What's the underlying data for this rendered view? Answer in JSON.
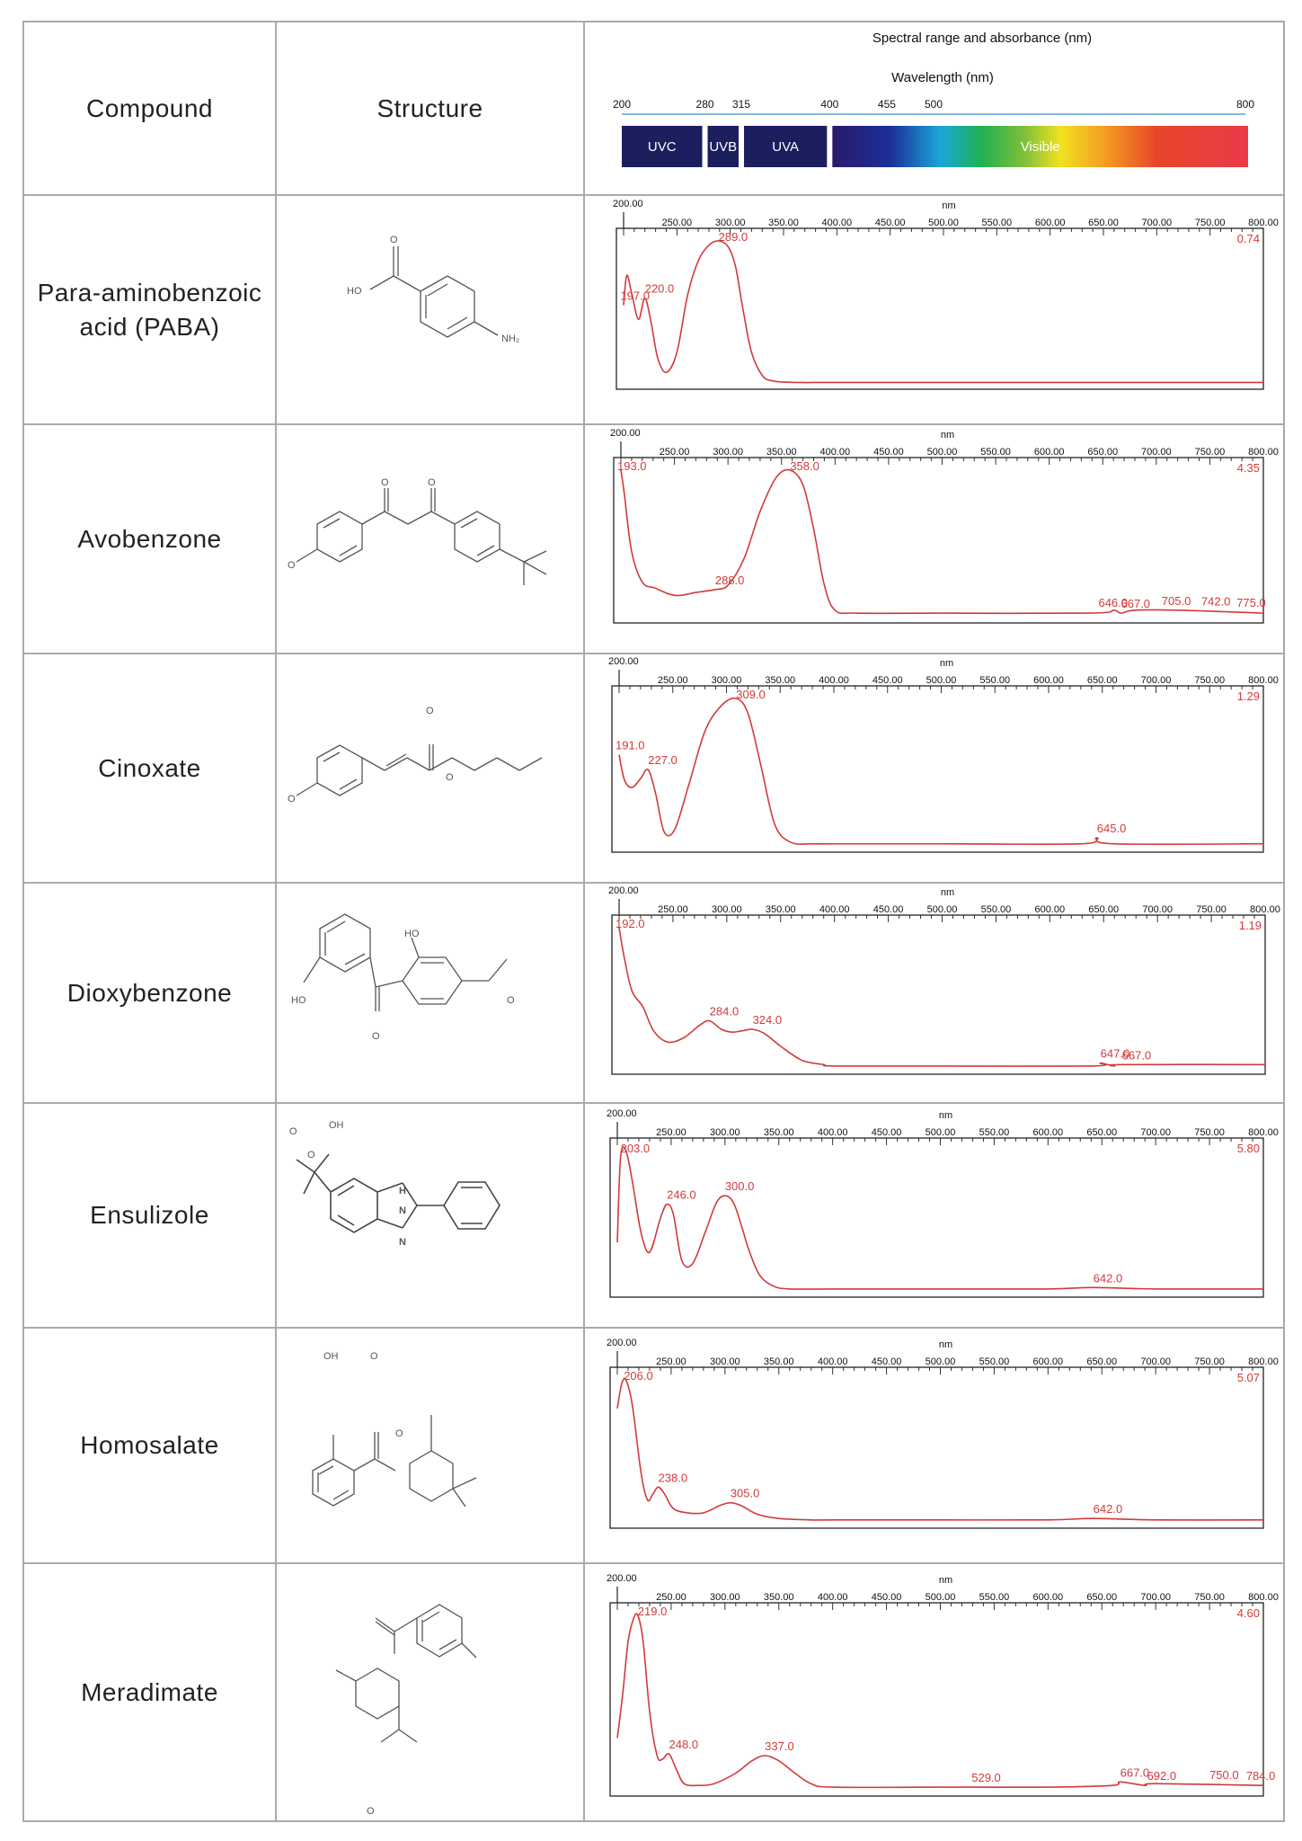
{
  "header": {
    "compound": "Compound",
    "structure": "Structure",
    "spectral_title": "Spectral range and absorbance (nm)",
    "wavelength_label": "Wavelength (nm)",
    "scale_ticks": [
      "200",
      "280",
      "315",
      "400",
      "455",
      "500",
      "800"
    ],
    "bands": [
      {
        "label": "UVC",
        "from": 200,
        "to": 280,
        "color": "#1c1f5e"
      },
      {
        "label": "UVB",
        "from": 280,
        "to": 315,
        "color": "#1c1f5e"
      },
      {
        "label": "UVA",
        "from": 315,
        "to": 400,
        "color": "#1c1f5e"
      },
      {
        "label": "Visible",
        "from": 400,
        "to": 800,
        "color": "spectrum"
      }
    ]
  },
  "axis": {
    "unit": "nm",
    "start_label": "200.00",
    "tick_labels": [
      "250.00",
      "300.00",
      "350.00",
      "400.00",
      "450.00",
      "500.00",
      "550.00",
      "600.00",
      "650.00",
      "700.00",
      "750.00",
      "800.00"
    ],
    "xlim": [
      200,
      800
    ]
  },
  "chart_data": [
    {
      "type": "line",
      "compound": "Para-aminobenzoic acid (PABA)",
      "max_label": "0.74",
      "peaks": [
        {
          "x": 197,
          "label": "197.0"
        },
        {
          "x": 220,
          "label": "220.0"
        },
        {
          "x": 289,
          "label": "289.0"
        }
      ],
      "x": [
        200,
        203,
        208,
        214,
        220,
        226,
        232,
        240,
        250,
        260,
        270,
        280,
        289,
        298,
        305,
        312,
        320,
        330,
        340,
        360,
        400,
        500,
        600,
        700,
        800
      ],
      "y": [
        0.55,
        0.76,
        0.62,
        0.45,
        0.6,
        0.42,
        0.18,
        0.08,
        0.22,
        0.62,
        0.86,
        0.97,
        1.0,
        0.96,
        0.82,
        0.52,
        0.22,
        0.06,
        0.02,
        0.01,
        0.01,
        0.01,
        0.01,
        0.01,
        0.01
      ]
    },
    {
      "type": "line",
      "compound": "Avobenzone",
      "max_label": "4.35",
      "peaks": [
        {
          "x": 193,
          "label": "193.0"
        },
        {
          "x": 288,
          "label": "288.0"
        },
        {
          "x": 358,
          "label": "358.0"
        },
        {
          "x": 646,
          "label": "646.0"
        },
        {
          "x": 667,
          "label": "667.0"
        },
        {
          "x": 705,
          "label": "705.0"
        },
        {
          "x": 742,
          "label": "742.0"
        },
        {
          "x": 775,
          "label": "775.0"
        }
      ],
      "x": [
        200,
        203,
        210,
        220,
        232,
        245,
        255,
        270,
        288,
        300,
        315,
        330,
        345,
        358,
        370,
        380,
        390,
        400,
        420,
        500,
        640,
        660,
        667,
        680,
        720,
        800
      ],
      "y": [
        1.0,
        0.85,
        0.45,
        0.24,
        0.2,
        0.16,
        0.15,
        0.17,
        0.19,
        0.22,
        0.4,
        0.72,
        0.95,
        1.0,
        0.9,
        0.6,
        0.22,
        0.05,
        0.03,
        0.03,
        0.03,
        0.05,
        0.03,
        0.05,
        0.05,
        0.03
      ]
    },
    {
      "type": "line",
      "compound": "Cinoxate",
      "max_label": "1.29",
      "peaks": [
        {
          "x": 191,
          "label": "191.0"
        },
        {
          "x": 227,
          "label": "227.0"
        },
        {
          "x": 309,
          "label": "309.0"
        },
        {
          "x": 645,
          "label": "645.0"
        }
      ],
      "x": [
        200,
        205,
        212,
        220,
        227,
        234,
        242,
        252,
        265,
        280,
        295,
        309,
        320,
        332,
        345,
        360,
        380,
        400,
        500,
        630,
        645,
        660,
        800
      ],
      "y": [
        0.62,
        0.45,
        0.4,
        0.46,
        0.52,
        0.36,
        0.1,
        0.12,
        0.42,
        0.78,
        0.95,
        1.0,
        0.9,
        0.55,
        0.15,
        0.03,
        0.02,
        0.02,
        0.02,
        0.02,
        0.06,
        0.02,
        0.02
      ]
    },
    {
      "type": "line",
      "compound": "Dioxybenzone",
      "max_label": "1.19",
      "peaks": [
        {
          "x": 192,
          "label": "192.0"
        },
        {
          "x": 284,
          "label": "284.0"
        },
        {
          "x": 324,
          "label": "324.0"
        },
        {
          "x": 647,
          "label": "647.0"
        },
        {
          "x": 667,
          "label": "667.0"
        }
      ],
      "x": [
        200,
        205,
        212,
        222,
        232,
        245,
        260,
        275,
        284,
        295,
        305,
        315,
        324,
        335,
        350,
        370,
        390,
        400,
        500,
        640,
        647,
        660,
        667,
        800
      ],
      "y": [
        1.0,
        0.78,
        0.55,
        0.44,
        0.27,
        0.19,
        0.22,
        0.31,
        0.34,
        0.28,
        0.26,
        0.27,
        0.28,
        0.25,
        0.16,
        0.06,
        0.03,
        0.02,
        0.02,
        0.02,
        0.04,
        0.02,
        0.03,
        0.03
      ]
    },
    {
      "type": "line",
      "compound": "Ensulizole",
      "max_label": "5.80",
      "peaks": [
        {
          "x": 203,
          "label": "203.0"
        },
        {
          "x": 246,
          "label": "246.0"
        },
        {
          "x": 300,
          "label": "300.0"
        },
        {
          "x": 642,
          "label": "642.0"
        }
      ],
      "x": [
        200,
        203,
        208,
        214,
        222,
        230,
        240,
        246,
        252,
        260,
        270,
        282,
        292,
        300,
        308,
        316,
        322,
        332,
        345,
        360,
        400,
        500,
        600,
        642,
        700,
        800
      ],
      "y": [
        0.35,
        0.95,
        1.0,
        0.78,
        0.42,
        0.28,
        0.52,
        0.62,
        0.55,
        0.22,
        0.2,
        0.43,
        0.63,
        0.68,
        0.63,
        0.45,
        0.3,
        0.12,
        0.04,
        0.02,
        0.02,
        0.02,
        0.02,
        0.03,
        0.02,
        0.02
      ]
    },
    {
      "type": "line",
      "compound": "Homosalate",
      "max_label": "5.07",
      "peaks": [
        {
          "x": 206,
          "label": "206.0"
        },
        {
          "x": 238,
          "label": "238.0"
        },
        {
          "x": 305,
          "label": "305.0"
        },
        {
          "x": 642,
          "label": "642.0"
        }
      ],
      "x": [
        200,
        204,
        208,
        214,
        222,
        228,
        233,
        238,
        244,
        252,
        265,
        280,
        295,
        305,
        315,
        330,
        350,
        380,
        400,
        500,
        600,
        642,
        700,
        800
      ],
      "y": [
        0.8,
        0.97,
        1.0,
        0.82,
        0.35,
        0.16,
        0.2,
        0.25,
        0.2,
        0.1,
        0.07,
        0.07,
        0.12,
        0.14,
        0.12,
        0.06,
        0.03,
        0.02,
        0.02,
        0.02,
        0.02,
        0.03,
        0.02,
        0.02
      ]
    },
    {
      "type": "line",
      "compound": "Meradimate",
      "max_label": "4.60",
      "peaks": [
        {
          "x": 219,
          "label": "219.0"
        },
        {
          "x": 248,
          "label": "248.0"
        },
        {
          "x": 337,
          "label": "337.0"
        },
        {
          "x": 529,
          "label": "529.0"
        },
        {
          "x": 667,
          "label": "667.0"
        },
        {
          "x": 692,
          "label": "692.0"
        },
        {
          "x": 750,
          "label": "750.0"
        },
        {
          "x": 784,
          "label": "784.0"
        }
      ],
      "x": [
        200,
        205,
        210,
        215,
        219,
        224,
        230,
        237,
        242,
        248,
        255,
        262,
        275,
        290,
        310,
        325,
        337,
        350,
        365,
        380,
        400,
        500,
        529,
        600,
        660,
        667,
        690,
        700,
        800
      ],
      "y": [
        0.3,
        0.55,
        0.85,
        0.98,
        1.0,
        0.85,
        0.45,
        0.2,
        0.18,
        0.21,
        0.12,
        0.04,
        0.03,
        0.04,
        0.1,
        0.17,
        0.2,
        0.17,
        0.1,
        0.04,
        0.02,
        0.02,
        0.02,
        0.02,
        0.03,
        0.05,
        0.03,
        0.04,
        0.03
      ]
    }
  ]
}
